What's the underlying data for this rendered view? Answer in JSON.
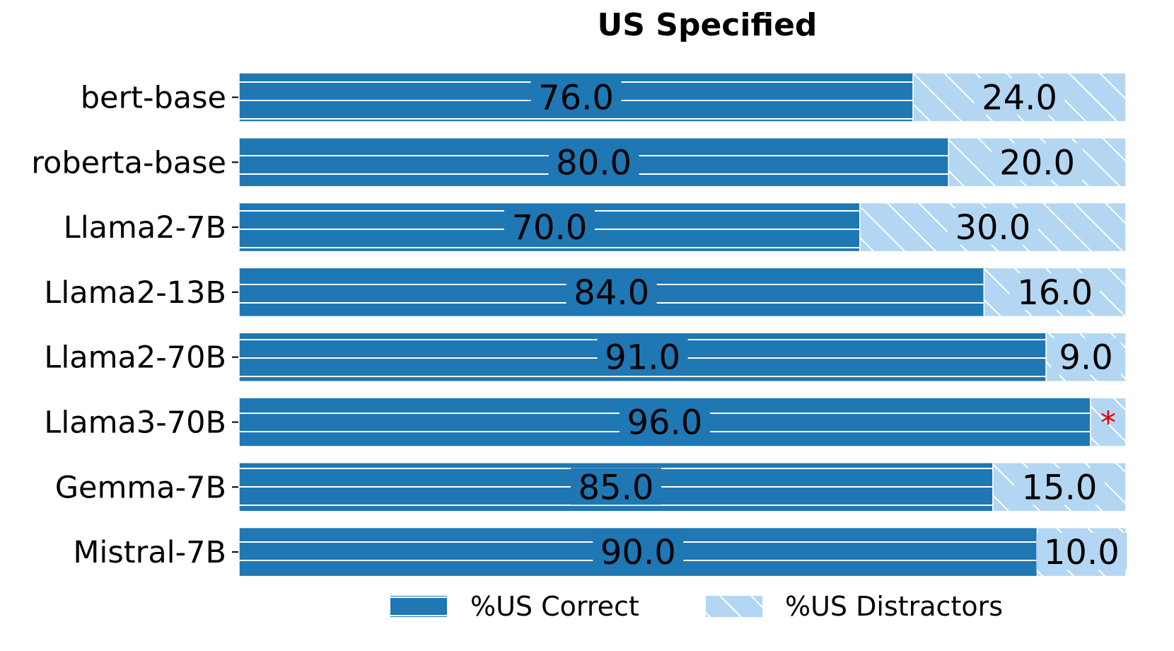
{
  "chart_data": {
    "type": "bar",
    "orientation": "horizontal",
    "stacked": true,
    "title": "US Specified",
    "xlabel": "",
    "ylabel": "",
    "xlim": [
      0,
      100
    ],
    "grid": false,
    "legend_placement": "bottom",
    "categories": [
      "bert-base",
      "roberta-base",
      "Llama2-7B",
      "Llama2-13B",
      "Llama2-70B",
      "Llama3-70B",
      "Gemma-7B",
      "Mistral-7B"
    ],
    "series": [
      {
        "name": "%US Correct",
        "color": "#1f77b4",
        "hatch": "horizontal-lines",
        "values": [
          76.0,
          80.0,
          70.0,
          84.0,
          91.0,
          96.0,
          85.0,
          90.0
        ],
        "labels": [
          "76.0",
          "80.0",
          "70.0",
          "84.0",
          "91.0",
          "96.0",
          "85.0",
          "90.0"
        ]
      },
      {
        "name": "%US Distractors",
        "color": "#b3d7f2",
        "hatch": "diagonal-lines",
        "values": [
          24.0,
          20.0,
          30.0,
          16.0,
          9.0,
          4.0,
          15.0,
          10.0
        ],
        "labels": [
          "24.0",
          "20.0",
          "30.0",
          "16.0",
          "9.0",
          "*",
          "15.0",
          "10.0"
        ]
      }
    ]
  }
}
